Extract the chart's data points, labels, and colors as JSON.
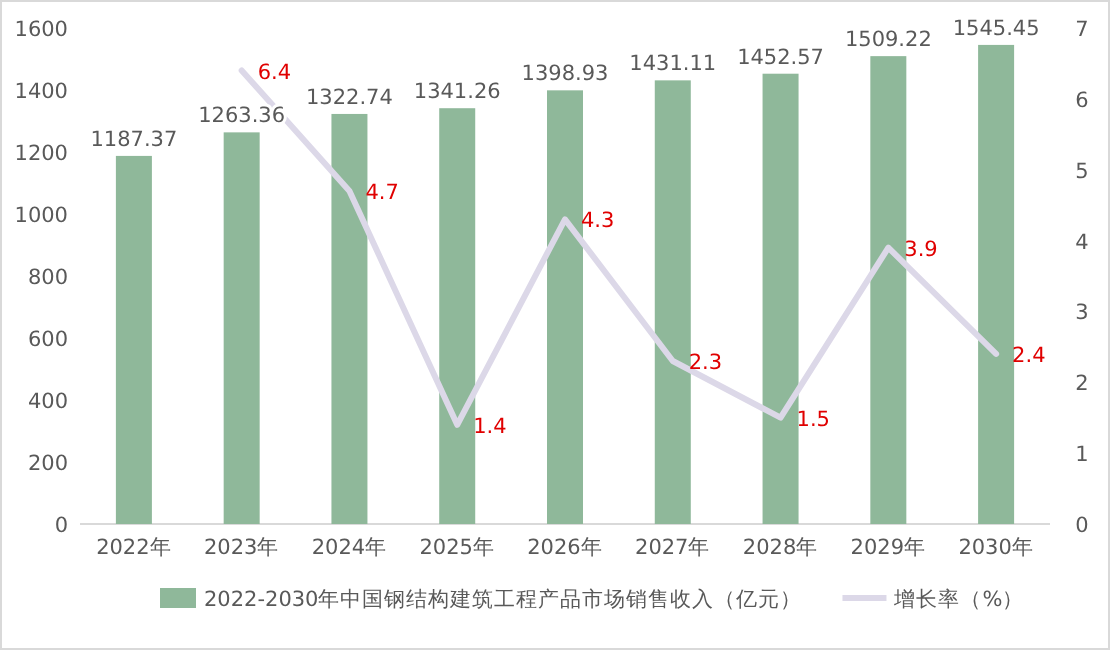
{
  "chart_data": {
    "type": "bar",
    "categories": [
      "2022年",
      "2023年",
      "2024年",
      "2025年",
      "2026年",
      "2027年",
      "2028年",
      "2029年",
      "2030年"
    ],
    "series": [
      {
        "name": "2022-2030年中国钢结构建筑工程产品市场销售收入（亿元）",
        "color": "#8fb89a",
        "values": [
          1187.37,
          1263.36,
          1322.74,
          1341.26,
          1398.93,
          1431.11,
          1452.57,
          1509.22,
          1545.45
        ]
      },
      {
        "name": "增长率（%）",
        "type": "line",
        "axis": "y2",
        "color": "#dcd8e8",
        "values": [
          null,
          6.4,
          4.7,
          1.4,
          4.3,
          2.3,
          1.5,
          3.9,
          2.4
        ]
      }
    ],
    "ylim": [
      0,
      1600
    ],
    "yticks": [
      0,
      200,
      400,
      600,
      800,
      1000,
      1200,
      1400,
      1600
    ],
    "y2lim": [
      0,
      7
    ],
    "y2ticks": [
      0,
      1,
      2,
      3,
      4,
      5,
      6,
      7
    ],
    "data_labels": true,
    "legend": "bottom",
    "grid": false,
    "marker": "none"
  }
}
